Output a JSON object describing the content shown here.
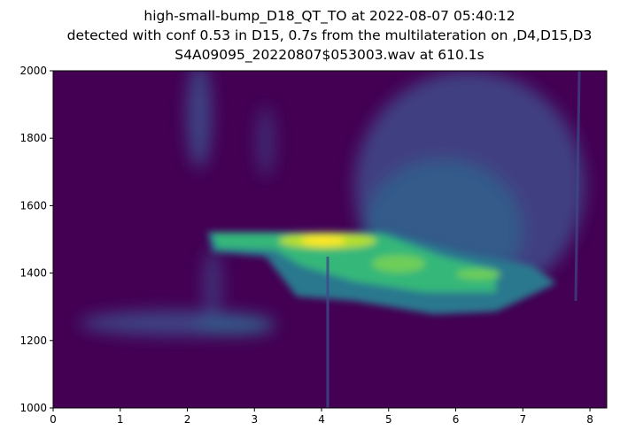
{
  "chart_data": {
    "type": "spectrogram",
    "title": [
      "high-small-bump_D18_QT_TO at 2022-08-07 05:40:12",
      "detected with conf 0.53 in D15, 0.7s from the multilateration on ,D4,D15,D3",
      "S4A09095_20220807$053003.wav at 610.1s"
    ],
    "xlim": [
      0,
      8.25
    ],
    "xticks": [
      0,
      1,
      2,
      3,
      4,
      5,
      6,
      7,
      8
    ],
    "ylim": [
      1000,
      2000
    ],
    "yticks": [
      1000,
      1200,
      1400,
      1600,
      1800,
      2000
    ],
    "colormap": "viridis"
  }
}
